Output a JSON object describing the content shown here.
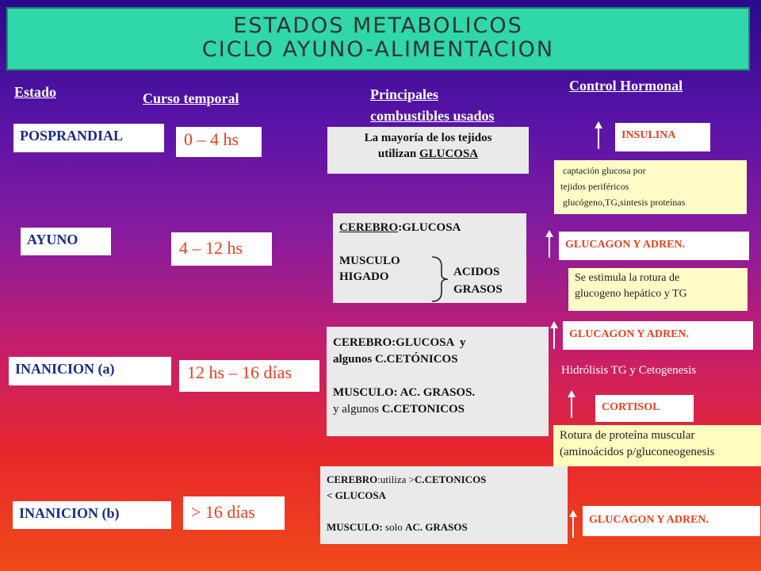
{
  "title": {
    "line1": "ESTADOS METABOLICOS",
    "line2": "CICLO AYUNO-ALIMENTACION"
  },
  "headers": {
    "estado": "Estado",
    "curso": "Curso temporal",
    "combustibles_1": "Principales",
    "combustibles_2": "combustibles usados",
    "control": "Control Hormonal"
  },
  "rows": {
    "posprandial": {
      "state": "POSPRANDIAL",
      "time": "0 – 4 hs",
      "fuel_1": "La mayoría de los tejidos",
      "fuel_2a": "utilizan ",
      "fuel_2b": "GLUCOSA",
      "hormone": "INSULINA",
      "note_1": " captación glucosa por",
      "note_2": "tejidos periféricos",
      "note_3": " glucógeno,TG,sintesis proteínas"
    },
    "ayuno": {
      "state": "AYUNO",
      "time": "4 – 12 hs",
      "fuel_1a": "CEREBRO",
      "fuel_1b": ":GLUCOSA",
      "fuel_2": "MUSCULO",
      "fuel_3": "HIGADO",
      "fuel_acidos_1": "ACIDOS",
      "fuel_acidos_2": "GRASOS",
      "hormone": "GLUCAGON Y ADREN.",
      "note_1": "Se estimula la rotura de",
      "note_2": "glucogeno hepático y TG"
    },
    "inanicion_a": {
      "state": "INANICION (a)",
      "time": "12 hs – 16 días",
      "fuel_1": "CEREBRO:GLUCOSA  y",
      "fuel_2": "algunos C.CETÓNICOS",
      "fuel_3": "MUSCULO: AC. GRASOS.",
      "fuel_4a": "y algunos ",
      "fuel_4b": "C.CETONICOS",
      "hormone": "GLUCAGON Y ADREN.",
      "note_plain": "Hidrólisis TG y Cetogenesis",
      "hormone_2": "CORTISOL",
      "note_1": "Rotura de proteína muscular",
      "note_2": "(aminoácidos p/gluconeogenesis"
    },
    "inanicion_b": {
      "state": "INANICION (b)",
      "time": "> 16 días",
      "fuel_1a": "CEREBRO",
      "fuel_1b": ":utiliza >",
      "fuel_1c": "C.CETONICOS",
      "fuel_2": "< GLUCOSA",
      "fuel_3a": "MUSCULO: ",
      "fuel_3b": "solo ",
      "fuel_3c": "AC. GRASOS",
      "hormone": "GLUCAGON Y ADREN."
    }
  },
  "colors": {
    "title_bg": "#30d7a8",
    "hormone_text": "#e8401c",
    "state_text": "#1a2a8a",
    "note_bg": "#fffcc0"
  },
  "icons": [
    "up-arrow-icon",
    "curly-brace-icon"
  ]
}
